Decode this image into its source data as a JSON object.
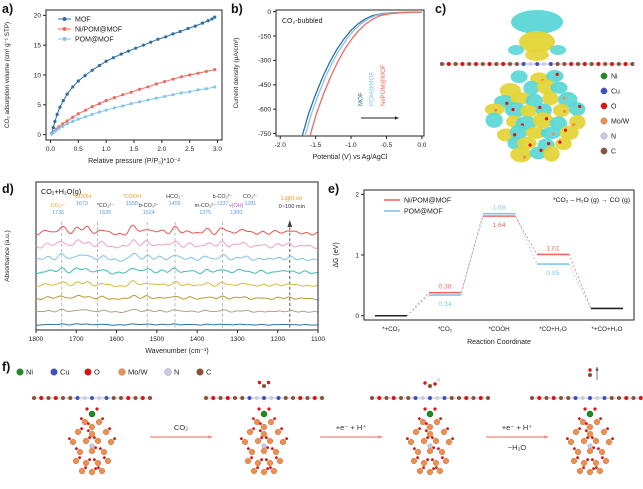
{
  "panel_labels": {
    "a": "a)",
    "b": "b)",
    "c": "c)",
    "d": "d)",
    "e": "e)",
    "f": "f)"
  },
  "palette": {
    "mof_blue": "#2f6f9f",
    "ni_pom_red": "#ee6a5f",
    "pom_lightblue": "#85c5ea",
    "annot_orange": "#f59a23",
    "annot_blue": "#5b9bd5",
    "annot_purple": "#b05bb0",
    "arrow_pink": "#f0837c",
    "isosurface_yellow": "#e3d435",
    "isosurface_cyan": "#5ad6d6",
    "atoms": {
      "Ni": "#1e8c1e",
      "Cu": "#3b50c8",
      "O": "#e01010",
      "MoW": "#f09050",
      "N": "#c8cce8",
      "C": "#8a5038"
    }
  },
  "chart_data": [
    {
      "id": "a",
      "type": "scatter",
      "xlabel": "Relative pressure (P/P₀)*10⁻²",
      "ylabel": "CO₂ adsorption volume (cm³ g⁻¹ STP)",
      "xlim": [
        -0.08,
        3.08
      ],
      "ylim": [
        -0.9,
        20.9
      ],
      "xticks": [
        "0.0",
        "0.5",
        "1.0",
        "1.5",
        "2.0",
        "2.5",
        "3.0"
      ],
      "xtick_vals": [
        0.0,
        0.5,
        1.0,
        1.5,
        2.0,
        2.5,
        3.0
      ],
      "yticks": [
        "0",
        "5",
        "10",
        "15",
        "20"
      ],
      "ytick_vals": [
        0,
        5,
        10,
        15,
        20
      ],
      "legend_position": "top-left",
      "grid": false,
      "series": [
        {
          "name": "MOF",
          "color": "#2f6f9f",
          "points": [
            [
              0.02,
              0.2
            ],
            [
              0.05,
              1.2
            ],
            [
              0.08,
              2.2
            ],
            [
              0.12,
              3.4
            ],
            [
              0.17,
              4.6
            ],
            [
              0.23,
              5.7
            ],
            [
              0.3,
              6.8
            ],
            [
              0.4,
              8.0
            ],
            [
              0.5,
              9.0
            ],
            [
              0.62,
              9.9
            ],
            [
              0.75,
              10.8
            ],
            [
              0.88,
              11.6
            ],
            [
              1.0,
              12.3
            ],
            [
              1.13,
              12.9
            ],
            [
              1.27,
              13.5
            ],
            [
              1.4,
              14.0
            ],
            [
              1.53,
              14.5
            ],
            [
              1.67,
              15.0
            ],
            [
              1.8,
              15.5
            ],
            [
              1.93,
              16.0
            ],
            [
              2.07,
              16.4
            ],
            [
              2.2,
              16.9
            ],
            [
              2.33,
              17.3
            ],
            [
              2.47,
              17.8
            ],
            [
              2.6,
              18.2
            ],
            [
              2.73,
              18.7
            ],
            [
              2.83,
              19.1
            ],
            [
              2.9,
              19.4
            ],
            [
              2.95,
              19.7
            ]
          ]
        },
        {
          "name": "Ni/POM@MOF",
          "color": "#ee6a5f",
          "points": [
            [
              0.02,
              0.1
            ],
            [
              0.06,
              0.5
            ],
            [
              0.1,
              0.9
            ],
            [
              0.15,
              1.3
            ],
            [
              0.22,
              1.8
            ],
            [
              0.3,
              2.3
            ],
            [
              0.4,
              2.9
            ],
            [
              0.5,
              3.5
            ],
            [
              0.63,
              4.1
            ],
            [
              0.75,
              4.7
            ],
            [
              0.88,
              5.2
            ],
            [
              1.0,
              5.7
            ],
            [
              1.15,
              6.2
            ],
            [
              1.3,
              6.7
            ],
            [
              1.45,
              7.1
            ],
            [
              1.6,
              7.6
            ],
            [
              1.75,
              8.0
            ],
            [
              1.9,
              8.5
            ],
            [
              2.05,
              8.9
            ],
            [
              2.2,
              9.3
            ],
            [
              2.35,
              9.7
            ],
            [
              2.5,
              10.0
            ],
            [
              2.65,
              10.3
            ],
            [
              2.8,
              10.6
            ],
            [
              2.95,
              10.9
            ]
          ]
        },
        {
          "name": "POM@MOF",
          "color": "#85c5ea",
          "points": [
            [
              0.02,
              0.1
            ],
            [
              0.06,
              0.4
            ],
            [
              0.1,
              0.7
            ],
            [
              0.15,
              1.0
            ],
            [
              0.22,
              1.4
            ],
            [
              0.3,
              1.8
            ],
            [
              0.4,
              2.2
            ],
            [
              0.5,
              2.6
            ],
            [
              0.63,
              3.0
            ],
            [
              0.75,
              3.4
            ],
            [
              0.88,
              3.8
            ],
            [
              1.0,
              4.1
            ],
            [
              1.15,
              4.5
            ],
            [
              1.3,
              4.8
            ],
            [
              1.45,
              5.2
            ],
            [
              1.6,
              5.5
            ],
            [
              1.75,
              5.8
            ],
            [
              1.9,
              6.1
            ],
            [
              2.05,
              6.4
            ],
            [
              2.2,
              6.7
            ],
            [
              2.35,
              7.0
            ],
            [
              2.5,
              7.2
            ],
            [
              2.65,
              7.5
            ],
            [
              2.8,
              7.7
            ],
            [
              2.95,
              8.0
            ]
          ]
        }
      ]
    },
    {
      "id": "b",
      "type": "line",
      "annotation": "CO₂-bubbled",
      "xlabel": "Potential (V) vs Ag/AgCl",
      "ylabel": "Current density (μA/cm²)",
      "xlim": [
        -2.06,
        0.03
      ],
      "ylim": [
        -765,
        10
      ],
      "xticks": [
        "-2.0",
        "-1.5",
        "-1.0",
        "-0.5",
        "0.0"
      ],
      "xtick_vals": [
        -2.0,
        -1.5,
        -1.0,
        -0.5,
        0.0
      ],
      "yticks": [
        "0",
        "-150",
        "-300",
        "-450",
        "-600",
        "-750"
      ],
      "ytick_vals": [
        0,
        -150,
        -300,
        -450,
        -600,
        -750
      ],
      "grid": false,
      "series": [
        {
          "name": "MOF",
          "color": "#2f6f9f",
          "points": [
            [
              0,
              -3
            ],
            [
              -0.2,
              -4
            ],
            [
              -0.4,
              -7
            ],
            [
              -0.55,
              -12
            ],
            [
              -0.7,
              -25
            ],
            [
              -0.8,
              -45
            ],
            [
              -0.9,
              -75
            ],
            [
              -1.0,
              -115
            ],
            [
              -1.1,
              -168
            ],
            [
              -1.2,
              -232
            ],
            [
              -1.3,
              -310
            ],
            [
              -1.4,
              -402
            ],
            [
              -1.5,
              -508
            ],
            [
              -1.6,
              -628
            ],
            [
              -1.69,
              -765
            ]
          ]
        },
        {
          "name": "POM@MOF",
          "color": "#85c5ea",
          "points": [
            [
              0,
              -3
            ],
            [
              -0.16,
              -4
            ],
            [
              -0.36,
              -7
            ],
            [
              -0.51,
              -12
            ],
            [
              -0.66,
              -25
            ],
            [
              -0.76,
              -45
            ],
            [
              -0.86,
              -75
            ],
            [
              -0.96,
              -115
            ],
            [
              -1.06,
              -168
            ],
            [
              -1.16,
              -232
            ],
            [
              -1.26,
              -310
            ],
            [
              -1.36,
              -402
            ],
            [
              -1.46,
              -508
            ],
            [
              -1.56,
              -628
            ],
            [
              -1.65,
              -765
            ]
          ]
        },
        {
          "name": "Ni/POM@MOF",
          "color": "#ee6a5f",
          "points": [
            [
              0,
              -3
            ],
            [
              -0.09,
              -4
            ],
            [
              -0.29,
              -7
            ],
            [
              -0.44,
              -12
            ],
            [
              -0.59,
              -25
            ],
            [
              -0.69,
              -45
            ],
            [
              -0.79,
              -75
            ],
            [
              -0.89,
              -115
            ],
            [
              -0.99,
              -168
            ],
            [
              -1.09,
              -232
            ],
            [
              -1.19,
              -310
            ],
            [
              -1.29,
              -402
            ],
            [
              -1.39,
              -508
            ],
            [
              -1.49,
              -628
            ],
            [
              -1.58,
              -765
            ]
          ]
        }
      ],
      "curve_labels": [
        {
          "text": "MOF",
          "color": "#2f6f9f",
          "x": -0.84
        },
        {
          "text": "POM@MOF",
          "color": "#85c5ea",
          "x": -0.68
        },
        {
          "text": "Ni/POM@MOF",
          "color": "#ee6a5f",
          "x": -0.52
        }
      ],
      "activity_arrow": true
    },
    {
      "id": "d",
      "type": "spectra",
      "condition_label": "CO₂+H₂O(g)",
      "light_on_label": "Light on",
      "light_time_label": "0~100 min",
      "xlabel": "Wavenumber (cm⁻¹)",
      "ylabel": "Absorbance (a.u.)",
      "xlim": [
        1800,
        1100
      ],
      "xticks": [
        "1800",
        "1700",
        "1600",
        "1500",
        "1400",
        "1300",
        "1200",
        "1100"
      ],
      "xtick_vals": [
        1800,
        1700,
        1600,
        1500,
        1400,
        1300,
        1200,
        1100
      ],
      "peaks": [
        [
          1770,
          0.3
        ],
        [
          1736,
          0.55
        ],
        [
          1697,
          0.5
        ],
        [
          1673,
          0.45
        ],
        [
          1635,
          0.38
        ],
        [
          1558,
          0.6
        ],
        [
          1524,
          0.45
        ],
        [
          1490,
          0.28
        ],
        [
          1455,
          0.5
        ],
        [
          1418,
          0.25
        ],
        [
          1375,
          0.35
        ],
        [
          1337,
          0.45
        ],
        [
          1300,
          0.22
        ],
        [
          1281,
          0.28
        ],
        [
          1240,
          0.18
        ],
        [
          1200,
          0.22
        ],
        [
          1170,
          0.28
        ],
        [
          1135,
          0.12
        ]
      ],
      "series": [
        {
          "color": "#e8574e",
          "scale": 1.0
        },
        {
          "color": "#f2a0c4",
          "scale": 0.9
        },
        {
          "color": "#7fc3ea",
          "scale": 0.8
        },
        {
          "color": "#3abdb0",
          "scale": 0.7
        },
        {
          "color": "#d9b93c",
          "scale": 0.58
        },
        {
          "color": "#b89a33",
          "scale": 0.46
        },
        {
          "color": "#b3a089",
          "scale": 0.34
        },
        {
          "color": "#2f6f9f",
          "scale": 0.16
        }
      ],
      "guides": [
        1736,
        1647,
        1524,
        1455,
        1337
      ],
      "light_guide": 1170,
      "annotations": [
        {
          "species": "CO₂•⁻",
          "num": "1736",
          "color": "#f59a23",
          "x": 1745,
          "row": 1
        },
        {
          "species": "*COOH",
          "num": "1673",
          "color": "#f59a23",
          "x": 1686,
          "row": 0
        },
        {
          "species": "*CO₃²⁻",
          "num": "1635",
          "color": "#333333",
          "x": 1628,
          "row": 1
        },
        {
          "species": "*COOH",
          "num": "1558",
          "color": "#f59a23",
          "x": 1562,
          "row": 0
        },
        {
          "species": "b-CO₃²⁻",
          "num": "1524",
          "color": "#333333",
          "x": 1520,
          "row": 1
        },
        {
          "species": "HCO₃⁻",
          "num": "1455",
          "color": "#333333",
          "x": 1456,
          "row": 0
        },
        {
          "species": "m-CO₃²⁻",
          "num": "1375",
          "color": "#333333",
          "x": 1380,
          "row": 1
        },
        {
          "species": "b-CO₃²⁻",
          "num": "1337",
          "color": "#333333",
          "x": 1337,
          "row": 0
        },
        {
          "species": "ν(OH)",
          "num": "1300",
          "color": "#b05bb0",
          "x": 1303,
          "row": 1
        },
        {
          "species": "CO₃²⁻",
          "num": "1281",
          "color": "#333333",
          "x": 1268,
          "row": 0
        }
      ]
    },
    {
      "id": "e",
      "type": "energy-diagram",
      "annotation": "*CO₂ – H₂O (g) → CO (g)",
      "xlabel": "Reaction Coordinate",
      "ylabel": "ΔG (eV)",
      "ylim": [
        -0.07,
        2.07
      ],
      "yticks": [
        "0",
        "1",
        "2"
      ],
      "ytick_vals": [
        0,
        1,
        2
      ],
      "states": [
        "*+CO₂",
        "*CO₂",
        "*COOH",
        "*CO+H₂O",
        "*+CO+H₂O"
      ],
      "series": [
        {
          "name": "Ni/POM@MOF",
          "color": "#ee6a5f",
          "values": [
            0.0,
            0.38,
            1.64,
            1.01,
            0.12
          ],
          "labels": [
            "",
            "0.38",
            "1.64",
            "1.01",
            ""
          ]
        },
        {
          "name": "POM@MOF",
          "color": "#85c5ea",
          "values": [
            0.0,
            0.34,
            1.68,
            0.85,
            0.12
          ],
          "labels": [
            "",
            "0.34",
            "1.68",
            "0.85",
            ""
          ]
        }
      ],
      "black_states": [
        0,
        4
      ]
    }
  ],
  "panel_c": {
    "legend": [
      {
        "label": "Ni",
        "color": "#1e8c1e"
      },
      {
        "label": "Cu",
        "color": "#3b50c8"
      },
      {
        "label": "O",
        "color": "#e01010"
      },
      {
        "label": "Mo/W",
        "color": "#f09050"
      },
      {
        "label": "N",
        "color": "#c8cce8"
      },
      {
        "label": "C",
        "color": "#8a5038"
      }
    ]
  },
  "panel_f": {
    "legend": [
      {
        "label": "Ni",
        "color": "#1e8c1e"
      },
      {
        "label": "Cu",
        "color": "#3b50c8"
      },
      {
        "label": "O",
        "color": "#e01010"
      },
      {
        "label": "Mo/W",
        "color": "#f09050"
      },
      {
        "label": "N",
        "color": "#c8cce8"
      },
      {
        "label": "C",
        "color": "#8a5038"
      }
    ],
    "steps": [
      {
        "arrow_label": "CO₂",
        "arrow_sublabel": ""
      },
      {
        "arrow_label": "+e⁻ + H⁺",
        "arrow_sublabel": ""
      },
      {
        "arrow_label": "+e⁻ + H⁺",
        "arrow_sublabel": "−H₂O"
      }
    ],
    "molecules": [
      "bare",
      "co2",
      "cooh",
      "co"
    ]
  }
}
